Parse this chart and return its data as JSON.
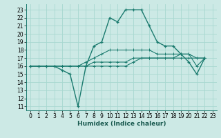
{
  "xlabel": "Humidex (Indice chaleur)",
  "bg_color": "#cce9e5",
  "grid_color": "#a8d8d0",
  "line_color": "#1a7a6e",
  "xlim": [
    -0.5,
    23.5
  ],
  "ylim": [
    10.5,
    23.7
  ],
  "xticks": [
    0,
    1,
    2,
    3,
    4,
    5,
    6,
    7,
    8,
    9,
    10,
    11,
    12,
    13,
    14,
    15,
    16,
    17,
    18,
    19,
    20,
    21,
    22,
    23
  ],
  "yticks": [
    11,
    12,
    13,
    14,
    15,
    16,
    17,
    18,
    19,
    20,
    21,
    22,
    23
  ],
  "series": [
    [
      16,
      16,
      16,
      16,
      15.5,
      15,
      11,
      16,
      18.5,
      19,
      22,
      21.5,
      23,
      23,
      23,
      21,
      19,
      18.5,
      18.5,
      17.5,
      16.5,
      15,
      17
    ],
    [
      16,
      16,
      16,
      16,
      16,
      16,
      16,
      16.5,
      17,
      17.5,
      18,
      18,
      18,
      18,
      18,
      18,
      17.5,
      17.5,
      17.5,
      17.5,
      17.5,
      17,
      17
    ],
    [
      16,
      16,
      16,
      16,
      16,
      16,
      16,
      16,
      16.5,
      16.5,
      16.5,
      16.5,
      16.5,
      17,
      17,
      17,
      17,
      17,
      17,
      17,
      17,
      17,
      17
    ],
    [
      16,
      16,
      16,
      16,
      16,
      16,
      16,
      16,
      16,
      16,
      16,
      16,
      16,
      16.5,
      17,
      17,
      17,
      17,
      17,
      17.5,
      17.5,
      16,
      17
    ]
  ],
  "tick_fontsize": 5.5,
  "xlabel_fontsize": 6.5
}
